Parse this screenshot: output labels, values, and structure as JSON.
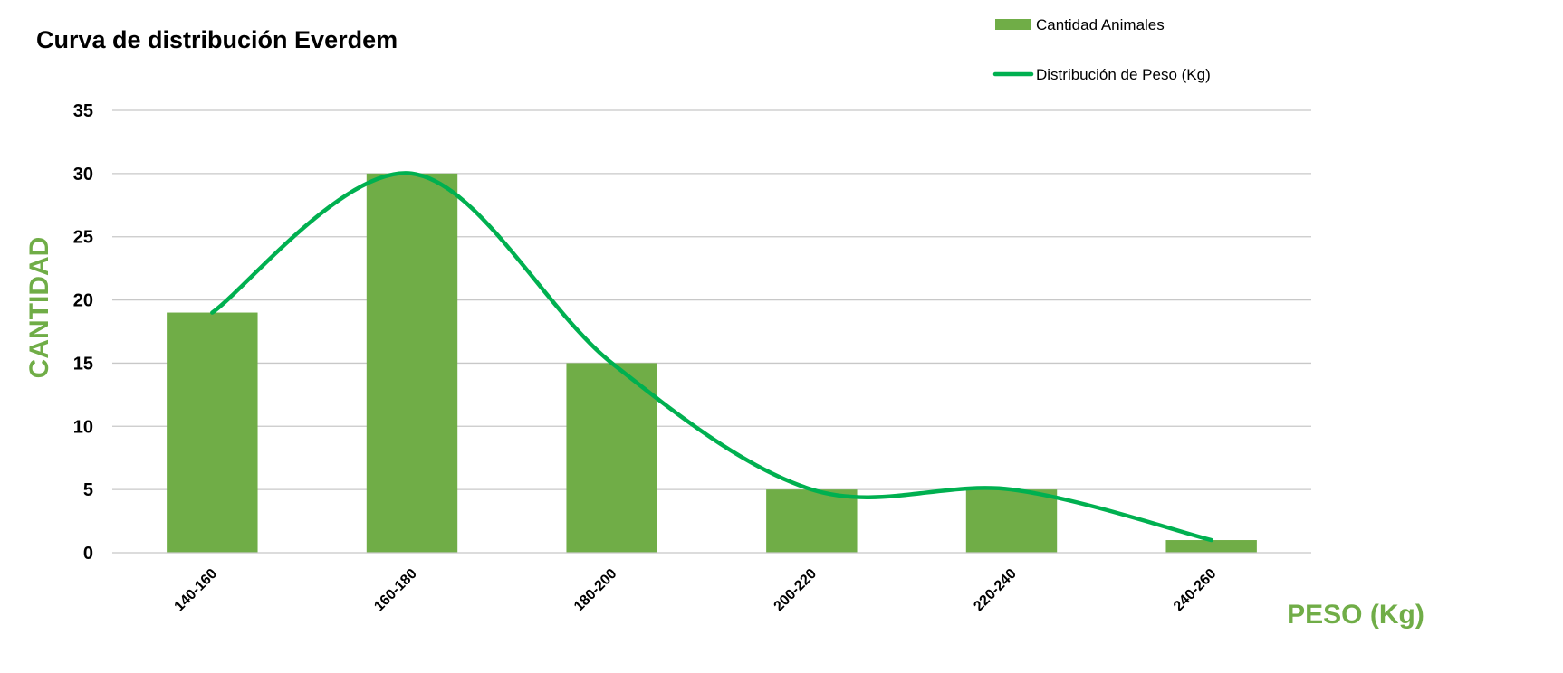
{
  "chart_data": {
    "type": "bar",
    "title": "Curva de distribución Everdem",
    "xlabel": "PESO (Kg)",
    "ylabel": "CANTIDAD",
    "categories": [
      "140-160",
      "160-180",
      "180-200",
      "200-220",
      "220-240",
      "240-260"
    ],
    "series": [
      {
        "name": "Cantidad Animales",
        "type": "bar",
        "values": [
          19,
          30,
          15,
          5,
          5,
          1
        ]
      },
      {
        "name": "Distribución de Peso (Kg)",
        "type": "line",
        "smooth": true,
        "values": [
          19,
          30,
          15,
          5,
          5,
          1
        ]
      }
    ],
    "ylim": [
      0,
      35
    ],
    "yticks": [
      0,
      5,
      10,
      15,
      20,
      25,
      30,
      35
    ],
    "grid": true,
    "legend_position": "top-right"
  },
  "colors": {
    "bar": "#70ad47",
    "line": "#00b050",
    "axis_label": "#70ad47",
    "grid": "#c8c8c8"
  }
}
